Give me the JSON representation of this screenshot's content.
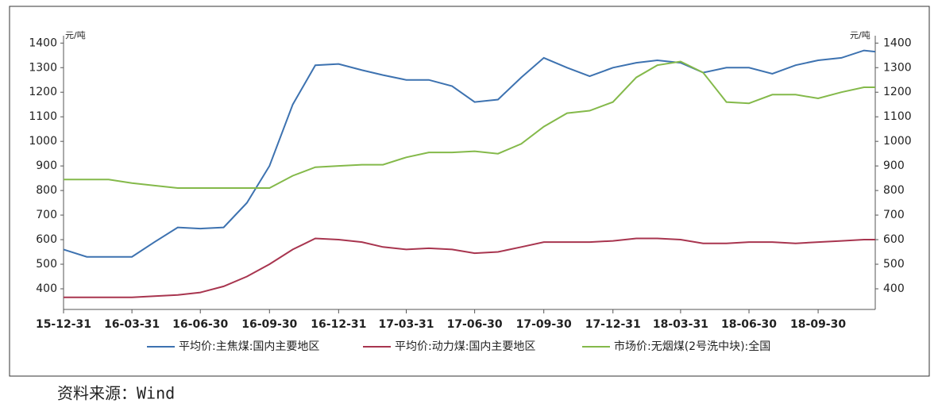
{
  "chart_data": {
    "type": "line",
    "y_unit": "元/吨",
    "y2_unit": "元/吨",
    "x": [
      "15-12-31",
      "16-01-31",
      "16-02-29",
      "16-03-31",
      "16-04-30",
      "16-05-31",
      "16-06-30",
      "16-07-31",
      "16-08-31",
      "16-09-30",
      "16-10-31",
      "16-11-30",
      "16-12-31",
      "17-01-31",
      "17-02-28",
      "17-03-31",
      "17-04-30",
      "17-05-31",
      "17-06-30",
      "17-07-31",
      "17-08-31",
      "17-09-30",
      "17-10-31",
      "17-11-30",
      "17-12-31",
      "18-01-31",
      "18-02-28",
      "18-03-31",
      "18-04-30",
      "18-05-31",
      "18-06-30",
      "18-07-31",
      "18-08-31",
      "18-09-30",
      "18-10-31",
      "18-11-30",
      "18-12-15"
    ],
    "series": [
      {
        "name": "平均价:主焦煤:国内主要地区",
        "color": "#3d72b0",
        "values": [
          560,
          530,
          530,
          530,
          590,
          650,
          645,
          650,
          750,
          900,
          1150,
          1310,
          1315,
          1290,
          1270,
          1250,
          1250,
          1225,
          1160,
          1170,
          1260,
          1340,
          1300,
          1265,
          1300,
          1320,
          1330,
          1320,
          1280,
          1300,
          1300,
          1275,
          1310,
          1330,
          1340,
          1370,
          1365
        ]
      },
      {
        "name": "平均价:动力煤:国内主要地区",
        "color": "#a8354f",
        "values": [
          365,
          365,
          365,
          365,
          370,
          375,
          385,
          410,
          450,
          500,
          560,
          605,
          600,
          590,
          570,
          560,
          565,
          560,
          545,
          550,
          570,
          590,
          590,
          590,
          595,
          605,
          605,
          600,
          585,
          585,
          590,
          590,
          585,
          590,
          595,
          600,
          600
        ]
      },
      {
        "name": "市场价:无烟煤(2号洗中块):全国",
        "color": "#84b94a",
        "values": [
          845,
          845,
          845,
          830,
          820,
          810,
          810,
          810,
          810,
          810,
          860,
          895,
          900,
          905,
          905,
          935,
          955,
          955,
          960,
          950,
          990,
          1060,
          1115,
          1125,
          1160,
          1260,
          1310,
          1325,
          1280,
          1160,
          1155,
          1190,
          1190,
          1175,
          1200,
          1220,
          1220
        ]
      }
    ],
    "xlim": [
      "15-12-31",
      "18-12-15"
    ],
    "xticks": [
      "15-12-31",
      "16-03-31",
      "16-06-30",
      "16-09-30",
      "16-12-31",
      "17-03-31",
      "17-06-30",
      "17-09-30",
      "17-12-31",
      "18-03-31",
      "18-06-30",
      "18-09-30"
    ],
    "ylim": [
      316,
      1430
    ],
    "yticks": [
      400,
      500,
      600,
      700,
      800,
      900,
      1000,
      1100,
      1200,
      1300,
      1400
    ],
    "y2lim": [
      316,
      1430
    ],
    "y2ticks": [
      400,
      500,
      600,
      700,
      800,
      900,
      1000,
      1100,
      1200,
      1300,
      1400
    ],
    "legend": "bottom"
  },
  "source": "资料来源：Wind"
}
